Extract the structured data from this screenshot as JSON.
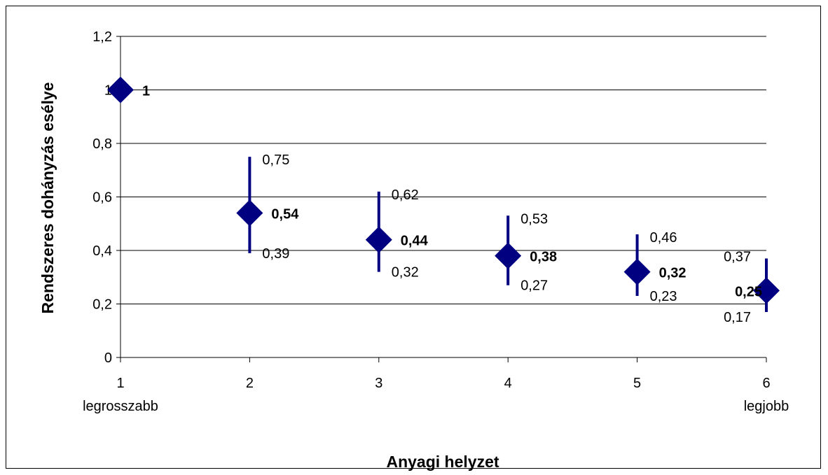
{
  "chart_data": {
    "type": "scatter",
    "xlabel": "Anyagi helyzet",
    "ylabel": "Rendszeres dohányzás esélye",
    "ylim": [
      0,
      1.2
    ],
    "yticks": [
      "0",
      "0,2",
      "0,4",
      "0,6",
      "0,8",
      "1",
      "1,2"
    ],
    "ytick_values": [
      0,
      0.2,
      0.4,
      0.6,
      0.8,
      1.0,
      1.2
    ],
    "categories": [
      "1",
      "2",
      "3",
      "4",
      "5",
      "6"
    ],
    "category_sublabels": [
      "legrosszabb",
      "",
      "",
      "",
      "",
      "legjobb"
    ],
    "points": [
      {
        "x": 1,
        "value": 1.0,
        "label": "1",
        "lower": null,
        "upper": null,
        "lower_label": "",
        "upper_label": ""
      },
      {
        "x": 2,
        "value": 0.54,
        "label": "0,54",
        "lower": 0.39,
        "upper": 0.75,
        "lower_label": "0,39",
        "upper_label": "0,75"
      },
      {
        "x": 3,
        "value": 0.44,
        "label": "0,44",
        "lower": 0.32,
        "upper": 0.62,
        "lower_label": "0,32",
        "upper_label": "0,62"
      },
      {
        "x": 4,
        "value": 0.38,
        "label": "0,38",
        "lower": 0.27,
        "upper": 0.53,
        "lower_label": "0,27",
        "upper_label": "0,53"
      },
      {
        "x": 5,
        "value": 0.32,
        "label": "0,32",
        "lower": 0.23,
        "upper": 0.46,
        "lower_label": "0,23",
        "upper_label": "0,46"
      },
      {
        "x": 6,
        "value": 0.25,
        "label": "0,25",
        "lower": 0.17,
        "upper": 0.37,
        "lower_label": "0,17",
        "upper_label": "0,37"
      }
    ],
    "grid": true,
    "legend": false,
    "colors": {
      "marker": "#000080",
      "errorbar": "#000080",
      "grid": "#000000"
    }
  }
}
